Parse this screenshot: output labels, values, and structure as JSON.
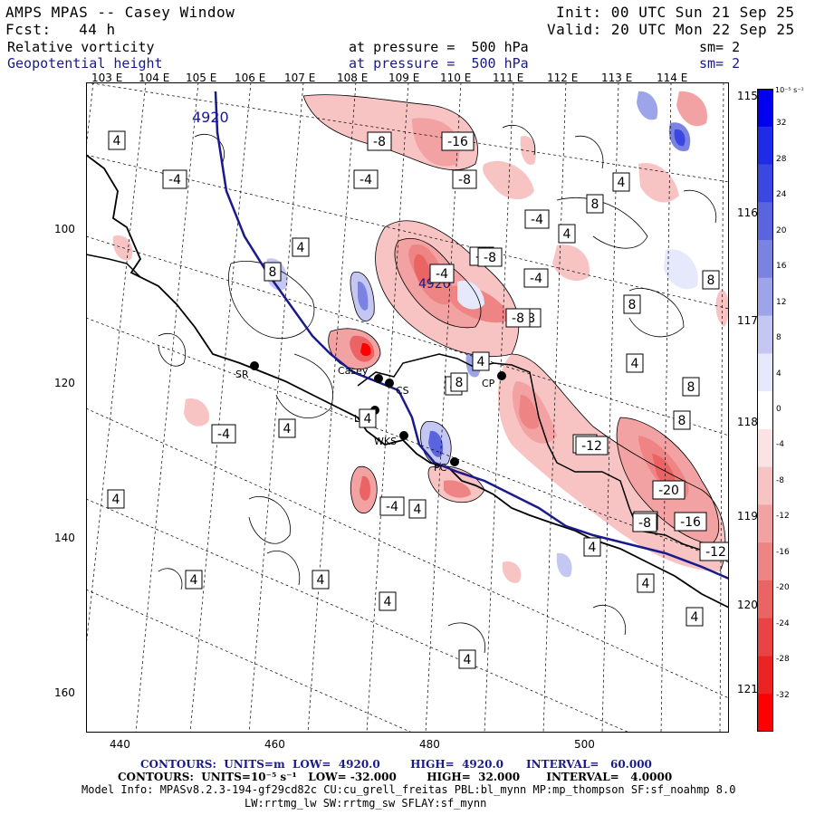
{
  "header": {
    "title_line": "AMPS MPAS -- Casey Window",
    "init_line": "Init: 00 UTC Sun 21 Sep 25",
    "fcst_line": "Fcst:   44 h",
    "valid_line": "Valid: 20 UTC Mon 22 Sep 25",
    "field1": {
      "name": "Relative vorticity",
      "pressure": "at pressure =  500 hPa",
      "sm": "sm= 2"
    },
    "field2": {
      "name": "Geopotential height",
      "pressure": "at pressure =  500 hPa",
      "sm": "sm= 2"
    }
  },
  "axes": {
    "top_longitudes": [
      "103 E",
      "104 E",
      "105 E",
      "106 E",
      "107 E",
      "108 E",
      "109 E",
      "110 E",
      "111 E",
      "112 E",
      "113 E",
      "114 E"
    ],
    "right_longitudes": [
      "115 E",
      "116 E",
      "117 E",
      "118 E",
      "119 E",
      "120 E",
      "121 E"
    ],
    "x_ticks": [
      "440",
      "460",
      "480",
      "500"
    ],
    "y_ticks": [
      "100",
      "120",
      "140",
      "160"
    ]
  },
  "colorbar": {
    "unit": "10⁻⁵ s⁻¹",
    "labels": [
      "32",
      "28",
      "24",
      "20",
      "16",
      "12",
      "8",
      "4",
      "0",
      "-4",
      "-8",
      "-12",
      "-16",
      "-20",
      "-24",
      "-28",
      "-32"
    ],
    "colors": [
      "#0000ee",
      "#1f2be6",
      "#3b47e0",
      "#5a64dc",
      "#7b83e2",
      "#9ea4ea",
      "#c3c7f2",
      "#e6e8fb",
      "#ffffff",
      "#fbe3e3",
      "#f7c3c3",
      "#f2a2a2",
      "#ef8484",
      "#eb6464",
      "#e94343",
      "#ec2323",
      "#ff0000"
    ]
  },
  "stations": [
    {
      "label": "SR"
    },
    {
      "label": "Casey"
    },
    {
      "label": "CS"
    },
    {
      "label": "LM"
    },
    {
      "label": "WKS"
    },
    {
      "label": "CP"
    },
    {
      "label": "PC"
    }
  ],
  "contour_labels": {
    "height": [
      "4920",
      "4920"
    ],
    "vorticity": [
      "-8",
      "-16",
      "-8",
      "-4",
      "4",
      "-4",
      "-4",
      "-8",
      "-4",
      "4",
      "8",
      "-8",
      "-4",
      "4",
      "8",
      "-8",
      "-8",
      "8",
      "4",
      "8",
      "4",
      "8",
      "8",
      "-4",
      "4",
      "-12",
      "-4",
      "8",
      "4",
      "-20",
      "-4",
      "4",
      "-8",
      "-16",
      "4",
      "4",
      "-4",
      "-12",
      "4",
      "4",
      "4",
      "4",
      "4",
      "4",
      "4",
      "4"
    ]
  },
  "footer": {
    "contours1": "CONTOURS:  UNITS=m  LOW=  4920.0        HIGH=  4920.0      INTERVAL=   60.000",
    "contours2": "CONTOURS:  UNITS=10⁻⁵ s⁻¹   LOW= -32.000        HIGH=  32.000       INTERVAL=   4.0000",
    "model_info": "Model Info: MPASv8.2.3-194-gf29cd82c CU:cu_grell_freitas PBL:bl_mynn MP:mp_thompson SF:sf_noahmp 8.0",
    "model_info2": "LW:rrtmg_lw SW:rrtmg_sw SFLAY:sf_mynn"
  }
}
